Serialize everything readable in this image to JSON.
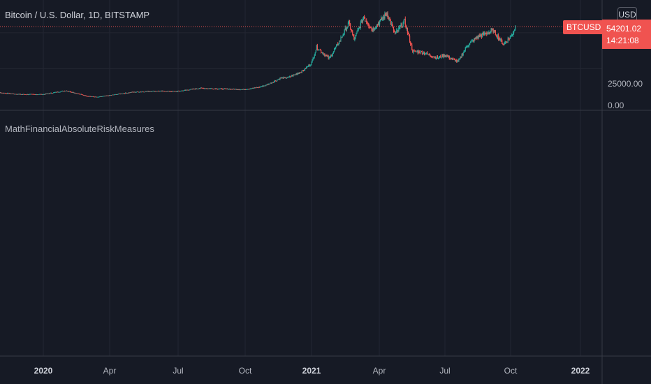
{
  "header": {
    "symbol_title": "Bitcoin / U.S. Dollar, 1D, BITSTAMP",
    "currency_button": "USD"
  },
  "price_scale": {
    "symbol_tag": "BTCUSD",
    "last_price": "54201.02",
    "countdown": "14:21:08",
    "ticks": [
      "25000.00",
      "0.00"
    ]
  },
  "indicator": {
    "title": "MathFinancialAbsoluteRiskMeasures"
  },
  "time_axis": {
    "labels": [
      {
        "text": "2020",
        "year": true
      },
      {
        "text": "Apr",
        "year": false
      },
      {
        "text": "Jul",
        "year": false
      },
      {
        "text": "Oct",
        "year": false
      },
      {
        "text": "2021",
        "year": true
      },
      {
        "text": "Apr",
        "year": false
      },
      {
        "text": "Jul",
        "year": false
      },
      {
        "text": "Oct",
        "year": false
      },
      {
        "text": "2022",
        "year": true
      }
    ]
  },
  "colors": {
    "background": "#161a25",
    "up": "#26a69a",
    "down": "#ef5350",
    "grid": "#232632",
    "separator": "#363a45",
    "price_line": "#ef5350"
  },
  "chart_data": {
    "type": "candlestick",
    "symbol": "BTCUSD",
    "interval": "1D",
    "exchange": "BITSTAMP",
    "currency": "USD",
    "last_price": 54201.02,
    "ylim": [
      0,
      64000
    ],
    "y_ticks": [
      0,
      25000
    ],
    "x_labels": [
      "2020",
      "Apr",
      "Jul",
      "Oct",
      "2021",
      "Apr",
      "Jul",
      "Oct",
      "2022"
    ],
    "series": [
      {
        "name": "BTCUSD",
        "points": [
          [
            "2019-10-01",
            8300
          ],
          [
            "2019-11-01",
            8400
          ],
          [
            "2019-12-01",
            7200
          ],
          [
            "2020-01-01",
            7200
          ],
          [
            "2020-02-01",
            9800
          ],
          [
            "2020-03-01",
            6000
          ],
          [
            "2020-03-15",
            5300
          ],
          [
            "2020-04-01",
            6600
          ],
          [
            "2020-05-01",
            8700
          ],
          [
            "2020-06-01",
            9500
          ],
          [
            "2020-07-01",
            9200
          ],
          [
            "2020-08-01",
            11500
          ],
          [
            "2020-09-01",
            11000
          ],
          [
            "2020-10-01",
            10600
          ],
          [
            "2020-10-20",
            12000
          ],
          [
            "2020-11-01",
            13800
          ],
          [
            "2020-11-20",
            18500
          ],
          [
            "2020-12-01",
            19000
          ],
          [
            "2020-12-20",
            23500
          ],
          [
            "2021-01-01",
            29000
          ],
          [
            "2021-01-08",
            40000
          ],
          [
            "2021-01-25",
            32000
          ],
          [
            "2021-02-08",
            44000
          ],
          [
            "2021-02-21",
            57000
          ],
          [
            "2021-02-28",
            45000
          ],
          [
            "2021-03-13",
            61000
          ],
          [
            "2021-03-25",
            52000
          ],
          [
            "2021-04-14",
            63500
          ],
          [
            "2021-04-25",
            49000
          ],
          [
            "2021-05-08",
            58000
          ],
          [
            "2021-05-19",
            37000
          ],
          [
            "2021-06-01",
            36500
          ],
          [
            "2021-06-22",
            32500
          ],
          [
            "2021-07-01",
            34500
          ],
          [
            "2021-07-20",
            29800
          ],
          [
            "2021-08-01",
            41000
          ],
          [
            "2021-08-15",
            47000
          ],
          [
            "2021-09-06",
            51500
          ],
          [
            "2021-09-20",
            42000
          ],
          [
            "2021-10-01",
            48000
          ],
          [
            "2021-10-06",
            54201
          ]
        ]
      }
    ]
  }
}
